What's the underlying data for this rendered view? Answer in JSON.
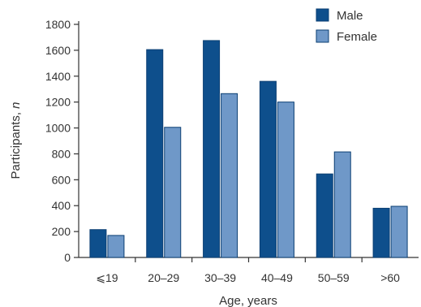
{
  "chart_data": {
    "type": "bar",
    "categories": [
      "⩽19",
      "20–29",
      "30–39",
      "40–49",
      "50–59",
      ">60"
    ],
    "series": [
      {
        "name": "Male",
        "values": [
          215,
          1605,
          1675,
          1360,
          645,
          380
        ],
        "color": "#0e4f8c"
      },
      {
        "name": "Female",
        "values": [
          170,
          1005,
          1265,
          1200,
          815,
          395
        ],
        "color": "#6f98c8"
      }
    ],
    "title": "",
    "xlabel": "Age, years",
    "ylabel_text": "Participants, ",
    "ylabel_italic": "n",
    "ylim": [
      0,
      1800
    ],
    "yticks": [
      "0",
      "200",
      "400",
      "600",
      "800",
      "1000",
      "1200",
      "1400",
      "1600",
      "1800"
    ],
    "ytick_values": [
      0,
      200,
      400,
      600,
      800,
      1000,
      1200,
      1400,
      1600,
      1800
    ],
    "grid": false,
    "legend_position": "top-right",
    "bar_edge_color": "#0b3f73",
    "axis_color": "#333333"
  }
}
